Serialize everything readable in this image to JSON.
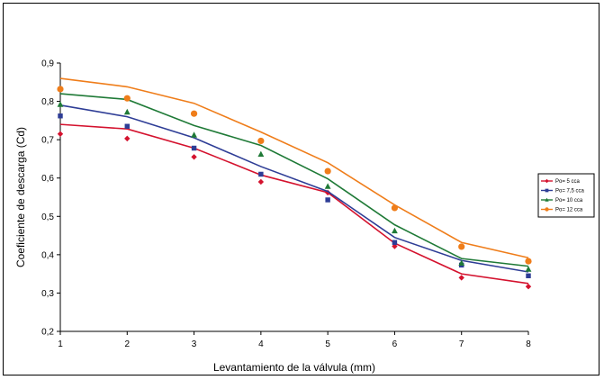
{
  "chart_data": {
    "type": "line",
    "title": "",
    "xlabel": "Levantamiento de la válvula (mm)",
    "ylabel": "Coeficiente de descarga (Cd)",
    "x": [
      1,
      2,
      3,
      4,
      5,
      6,
      7,
      8
    ],
    "xlim": [
      1,
      8
    ],
    "ylim": [
      0.2,
      0.9
    ],
    "yticks": [
      "0,2",
      "0,3",
      "0,4",
      "0,5",
      "0,6",
      "0,7",
      "0,8",
      "0,9"
    ],
    "xticks": [
      "1",
      "2",
      "3",
      "4",
      "5",
      "6",
      "7",
      "8"
    ],
    "grid": false,
    "legend_position": "right",
    "series": [
      {
        "name": "Po= 5 cca",
        "color": "#d4122e",
        "marker": "diamond",
        "points": [
          0.715,
          0.703,
          0.655,
          0.59,
          0.562,
          0.422,
          0.34,
          0.317
        ],
        "fit": [
          0.74,
          0.728,
          0.678,
          0.608,
          0.562,
          0.43,
          0.35,
          0.325
        ]
      },
      {
        "name": "Po= 7,5 cca",
        "color": "#2e3d96",
        "marker": "square",
        "points": [
          0.762,
          0.735,
          0.678,
          0.61,
          0.543,
          0.432,
          0.373,
          0.345
        ],
        "fit": [
          0.79,
          0.76,
          0.705,
          0.63,
          0.565,
          0.445,
          0.385,
          0.355
        ]
      },
      {
        "name": "Po= 10 cca",
        "color": "#1f7a37",
        "marker": "triangle",
        "points": [
          0.792,
          0.772,
          0.712,
          0.662,
          0.578,
          0.462,
          0.378,
          0.362
        ],
        "fit": [
          0.82,
          0.805,
          0.737,
          0.685,
          0.598,
          0.478,
          0.39,
          0.37
        ]
      },
      {
        "name": "Po= 12 cca",
        "color": "#ef7d1a",
        "marker": "circle",
        "points": [
          0.832,
          0.808,
          0.768,
          0.697,
          0.618,
          0.522,
          0.421,
          0.383
        ],
        "fit": [
          0.86,
          0.838,
          0.795,
          0.72,
          0.64,
          0.53,
          0.432,
          0.392
        ]
      }
    ]
  }
}
